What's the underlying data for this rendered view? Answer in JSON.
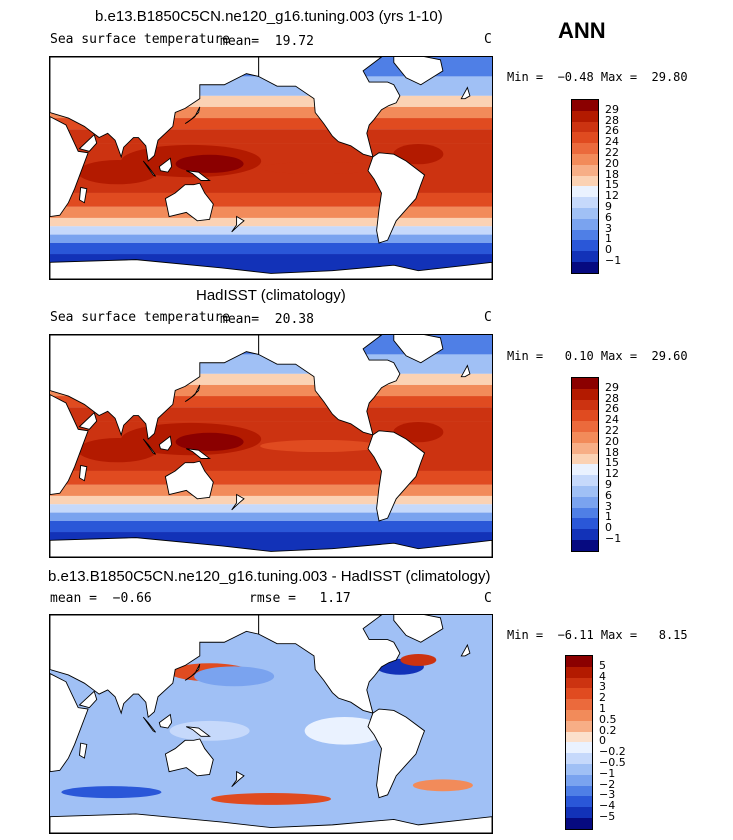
{
  "season": "ANN",
  "panels": [
    {
      "title": "b.e13.B1850C5CN.ne120_g16.tuning.003 (yrs 1-10)",
      "left_text": "Sea surface temperature",
      "mid_text": "mean=  19.72",
      "unit": "C",
      "minmax": "Min =  −0.48 Max =  29.80",
      "kind": "model",
      "colorbar": {
        "labels": [
          "29",
          "28",
          "26",
          "24",
          "22",
          "20",
          "18",
          "15",
          "12",
          "9",
          "6",
          "3",
          "1",
          "0",
          "−1"
        ],
        "colors": [
          "#8b0000",
          "#b31a00",
          "#cc3311",
          "#e04b20",
          "#eb6a3c",
          "#f28b5a",
          "#f7ae86",
          "#fbd2b4",
          "#eaf2ff",
          "#c6d9fb",
          "#a0c0f5",
          "#7aa3ef",
          "#4f7fe6",
          "#2a57d8",
          "#1232b8",
          "#060a80"
        ]
      }
    },
    {
      "title": "HadISST (climatology)",
      "left_text": "Sea surface temperature",
      "mid_text": "mean=  20.38",
      "unit": "C",
      "minmax": "Min =   0.10 Max =  29.60",
      "kind": "obs",
      "colorbar": {
        "labels": [
          "29",
          "28",
          "26",
          "24",
          "22",
          "20",
          "18",
          "15",
          "12",
          "9",
          "6",
          "3",
          "1",
          "0",
          "−1"
        ],
        "colors": [
          "#8b0000",
          "#b31a00",
          "#cc3311",
          "#e04b20",
          "#eb6a3c",
          "#f28b5a",
          "#f7ae86",
          "#fbd2b4",
          "#eaf2ff",
          "#c6d9fb",
          "#a0c0f5",
          "#7aa3ef",
          "#4f7fe6",
          "#2a57d8",
          "#1232b8",
          "#060a80"
        ]
      }
    },
    {
      "title": "b.e13.B1850C5CN.ne120_g16.tuning.003 - HadISST (climatology)",
      "left_text": "mean =  −0.66",
      "mid_text": "rmse =   1.17",
      "unit": "C",
      "minmax": "Min =  −6.11 Max =   8.15",
      "kind": "diff",
      "colorbar": {
        "labels": [
          "5",
          "4",
          "3",
          "2",
          "1",
          "0.5",
          "0.2",
          "0",
          "−0.2",
          "−0.5",
          "−1",
          "−2",
          "−3",
          "−4",
          "−5"
        ],
        "colors": [
          "#8b0000",
          "#b31a00",
          "#cc3311",
          "#e04b20",
          "#eb6a3c",
          "#f28b5a",
          "#f7ae86",
          "#fbe0cc",
          "#eaf2ff",
          "#c6d9fb",
          "#a0c0f5",
          "#7aa3ef",
          "#4f7fe6",
          "#2a57d8",
          "#1232b8",
          "#060a80"
        ]
      }
    }
  ]
}
